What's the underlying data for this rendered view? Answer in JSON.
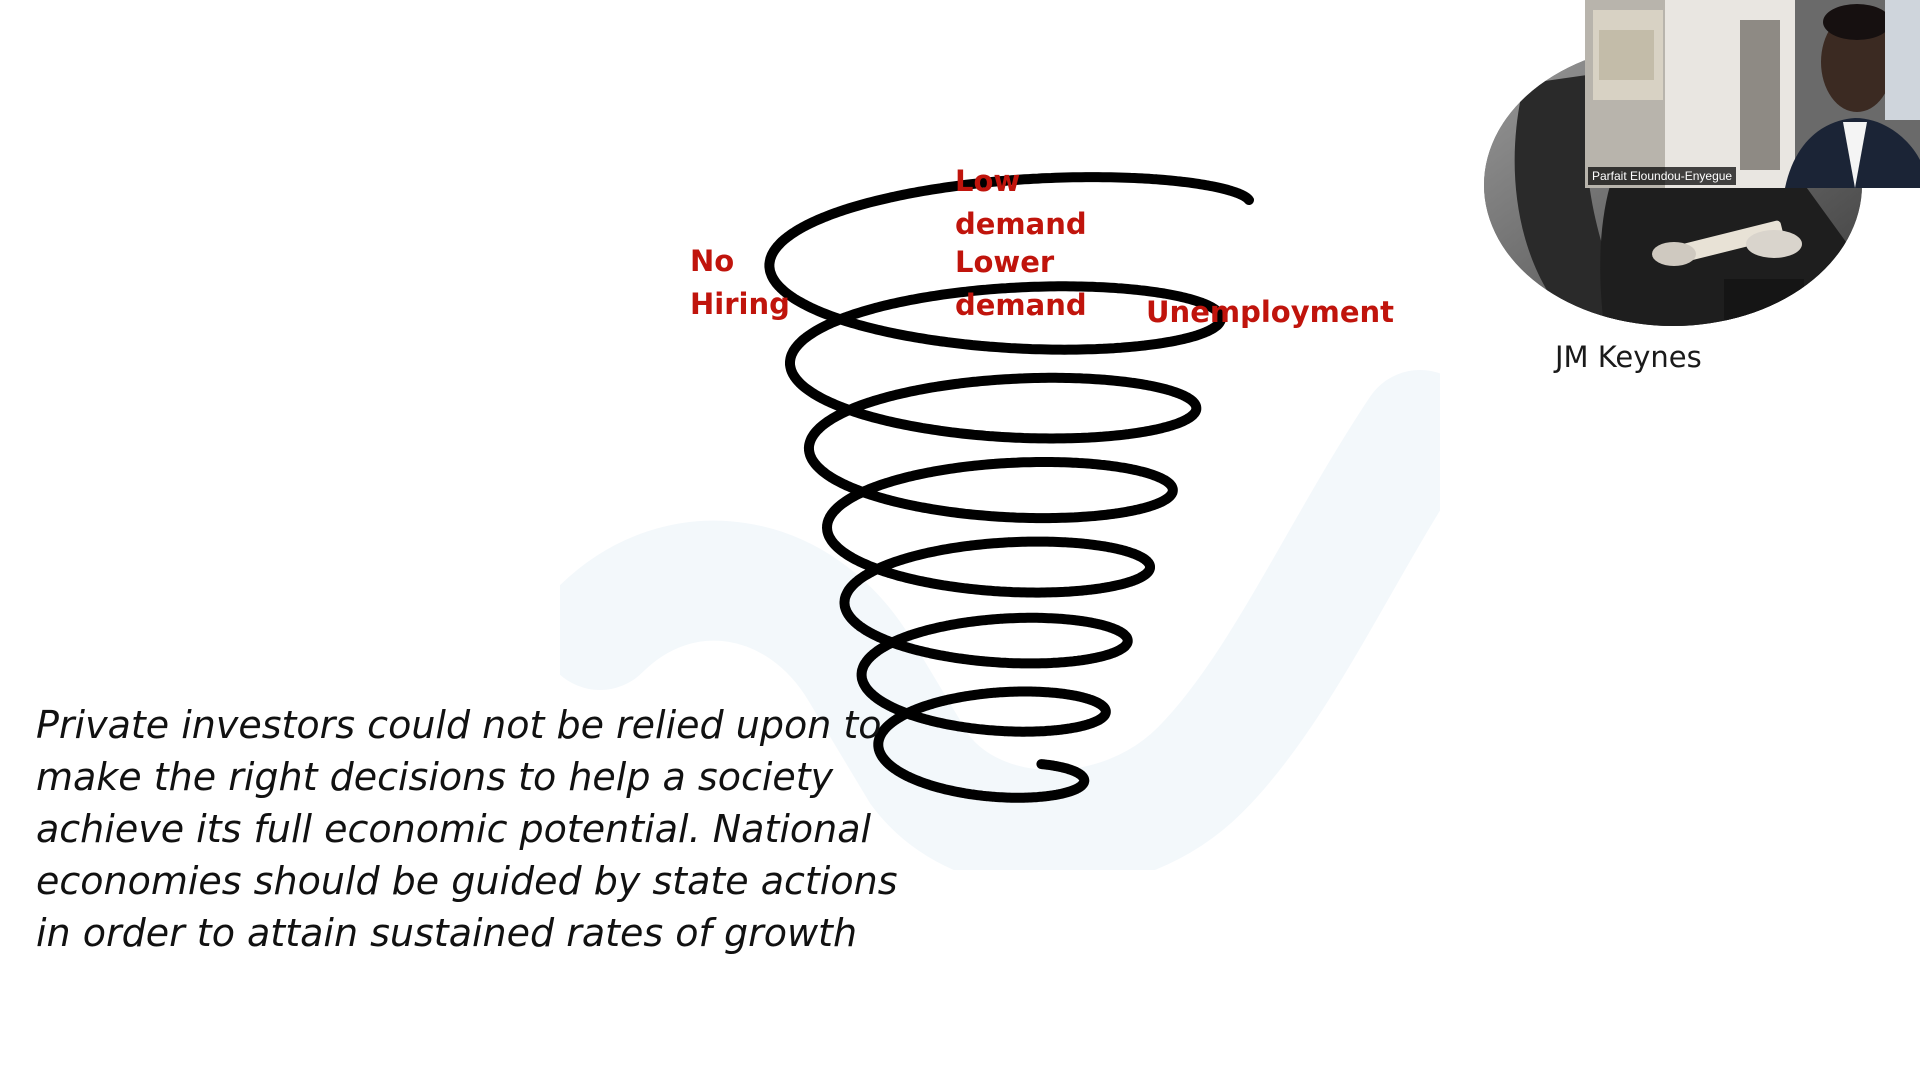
{
  "slide": {
    "spiral_labels": {
      "low_demand": "Low demand",
      "no_hiring": "No Hiring",
      "lower_demand": "Lower demand",
      "unemployment": "Unemployment"
    },
    "label_color": "#c0140c",
    "quote": "Private investors could not be relied upon to make the right decisions to help a society achieve its full economic potential. National economies should be guided by state actions in order to attain sustained rates of growth",
    "portrait_caption": "JM Keynes"
  },
  "video": {
    "participant_name": "Parfait Eloundou-Enyegue"
  },
  "icons": {
    "spiral": "downward-spiral-icon",
    "portrait": "keynes-portrait-icon",
    "webcam": "webcam-feed-icon"
  }
}
